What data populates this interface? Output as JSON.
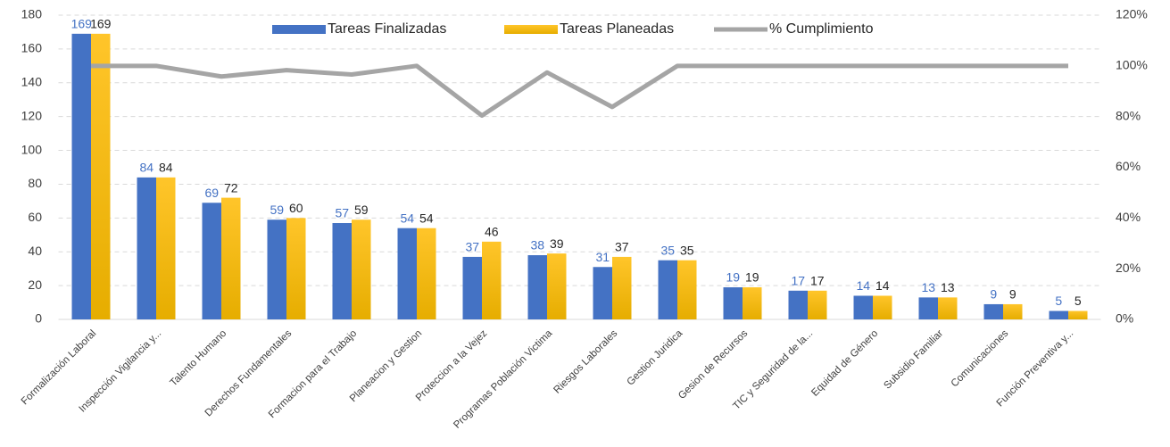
{
  "chart_data": {
    "type": "bar",
    "categories": [
      "Formalización Laboral",
      "Inspección Vigilancia y...",
      "Talento Humano",
      "Derechos Fundamentales",
      "Formacion para el Trabajo",
      "Planeacion y Gestion",
      "Proteccion a la Vejez",
      "Programas Población Victima",
      "Riesgos Laborales",
      "Gestion Juridica",
      "Gesion de Recursos",
      "TIC y Seguridad de la...",
      "Equidad de Género",
      "Subsidio Familiar",
      "Comunicaciones",
      "Función Preventiva y..."
    ],
    "series": [
      {
        "name": "Tareas Finalizadas",
        "color": "#4472c4",
        "values": [
          169,
          84,
          69,
          59,
          57,
          54,
          37,
          38,
          31,
          35,
          19,
          17,
          14,
          13,
          9,
          5
        ]
      },
      {
        "name": "Tareas Planeadas",
        "color": "#ffc000",
        "values": [
          169,
          84,
          72,
          60,
          59,
          54,
          46,
          39,
          37,
          35,
          19,
          17,
          14,
          13,
          9,
          5
        ]
      },
      {
        "name": "% Cumplimiento",
        "color": "#a5a5a5",
        "type": "line",
        "axis": "y2",
        "values": [
          100,
          100,
          95.8,
          98.3,
          96.6,
          100,
          80.4,
          97.4,
          83.8,
          100,
          100,
          100,
          100,
          100,
          100,
          100
        ]
      }
    ],
    "ylim": [
      0,
      180
    ],
    "yticks": [
      0,
      20,
      40,
      60,
      80,
      100,
      120,
      140,
      160,
      180
    ],
    "y2lim": [
      0,
      120
    ],
    "y2ticks": [
      {
        "value": 0,
        "label": "0%"
      },
      {
        "value": 20,
        "label": "20%"
      },
      {
        "value": 40,
        "label": "40%"
      },
      {
        "value": 60,
        "label": "60%"
      },
      {
        "value": 80,
        "label": "80%"
      },
      {
        "value": 100,
        "label": "100%"
      },
      {
        "value": 120,
        "label": "120%"
      }
    ],
    "grid": true,
    "legend": "top"
  }
}
